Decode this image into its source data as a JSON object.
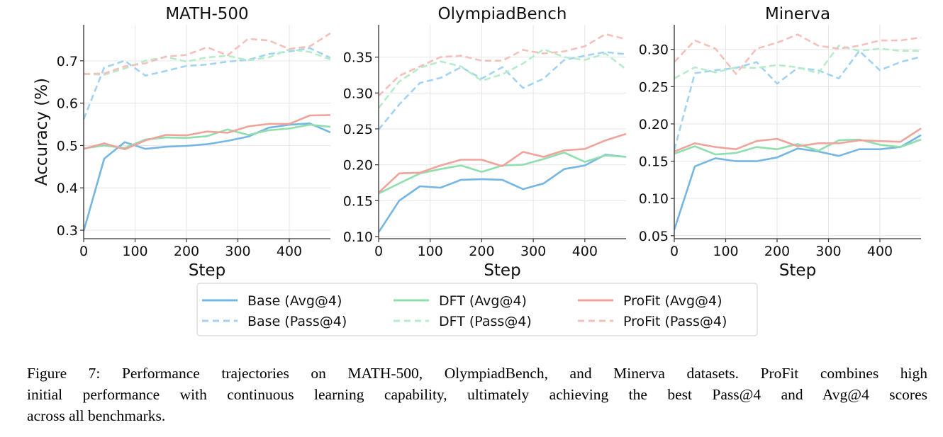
{
  "figure": {
    "caption_lines": [
      "Figure 7: Performance trajectories on MATH-500, OlympiadBench, and Minerva datasets. ProFit combines high",
      "initial performance with continuous learning capability, ultimately achieving the best Pass@4 and Avg@4 scores",
      "across all benchmarks."
    ]
  },
  "legend": {
    "placement": "bottom-center",
    "entries": [
      {
        "label": "Base (Avg@4)",
        "color": "#74b6e4",
        "style": "solid"
      },
      {
        "label": "DFT (Avg@4)",
        "color": "#8fdfae",
        "style": "solid"
      },
      {
        "label": "ProFit (Avg@4)",
        "color": "#f0a39b",
        "style": "solid"
      },
      {
        "label": "Base (Pass@4)",
        "color": "#a3d3f2",
        "style": "dashed"
      },
      {
        "label": "DFT (Pass@4)",
        "color": "#b6ecca",
        "style": "dashed"
      },
      {
        "label": "ProFit (Pass@4)",
        "color": "#f6c0ba",
        "style": "dashed"
      }
    ]
  },
  "chart_data": [
    {
      "type": "line",
      "title": "MATH-500",
      "xlabel": "Step",
      "ylabel": "Accuracy (%)",
      "xlim": [
        0,
        480
      ],
      "ylim": [
        0.28,
        0.785
      ],
      "xticks": [
        0,
        100,
        200,
        300,
        400
      ],
      "xtick_labels": [
        "0",
        "100",
        "200",
        "300",
        "400"
      ],
      "yticks": [
        0.3,
        0.4,
        0.5,
        0.6,
        0.7
      ],
      "ytick_labels": [
        "0.3",
        "0.4",
        "0.5",
        "0.6",
        "0.7"
      ],
      "grid": true,
      "x": [
        0,
        40,
        80,
        120,
        160,
        200,
        240,
        280,
        320,
        360,
        400,
        440,
        480
      ],
      "series": [
        {
          "name": "Base (Avg@4)",
          "values": [
            0.298,
            0.469,
            0.508,
            0.492,
            0.497,
            0.499,
            0.503,
            0.511,
            0.521,
            0.542,
            0.549,
            0.552,
            0.531
          ]
        },
        {
          "name": "DFT (Avg@4)",
          "values": [
            0.493,
            0.5,
            0.494,
            0.514,
            0.519,
            0.518,
            0.522,
            0.538,
            0.525,
            0.536,
            0.54,
            0.549,
            0.544
          ]
        },
        {
          "name": "ProFit (Avg@4)",
          "values": [
            0.492,
            0.505,
            0.491,
            0.512,
            0.525,
            0.524,
            0.533,
            0.53,
            0.545,
            0.551,
            0.551,
            0.571,
            0.572
          ]
        },
        {
          "name": "Base (Pass@4)",
          "values": [
            0.562,
            0.684,
            0.7,
            0.665,
            0.676,
            0.688,
            0.691,
            0.698,
            0.702,
            0.716,
            0.722,
            0.73,
            0.707
          ]
        },
        {
          "name": "DFT (Pass@4)",
          "values": [
            0.669,
            0.667,
            0.682,
            0.7,
            0.709,
            0.698,
            0.708,
            0.712,
            0.701,
            0.708,
            0.727,
            0.721,
            0.703
          ]
        },
        {
          "name": "ProFit (Pass@4)",
          "values": [
            0.669,
            0.67,
            0.687,
            0.694,
            0.71,
            0.714,
            0.732,
            0.713,
            0.752,
            0.748,
            0.728,
            0.734,
            0.765
          ]
        }
      ]
    },
    {
      "type": "line",
      "title": "OlympiadBench",
      "xlabel": "Step",
      "ylabel": "",
      "xlim": [
        0,
        480
      ],
      "ylim": [
        0.097,
        0.395
      ],
      "xticks": [
        0,
        100,
        200,
        300,
        400
      ],
      "xtick_labels": [
        "0",
        "100",
        "200",
        "300",
        "400"
      ],
      "yticks": [
        0.1,
        0.15,
        0.2,
        0.25,
        0.3,
        0.35
      ],
      "ytick_labels": [
        "0.10",
        "0.15",
        "0.20",
        "0.25",
        "0.30",
        "0.35"
      ],
      "grid": true,
      "x": [
        0,
        40,
        80,
        120,
        160,
        200,
        240,
        280,
        320,
        360,
        400,
        440,
        480
      ],
      "series": [
        {
          "name": "Base (Avg@4)",
          "values": [
            0.106,
            0.15,
            0.17,
            0.168,
            0.179,
            0.18,
            0.179,
            0.166,
            0.174,
            0.194,
            0.199,
            0.214,
            0.211
          ]
        },
        {
          "name": "DFT (Avg@4)",
          "values": [
            0.16,
            0.174,
            0.188,
            0.194,
            0.199,
            0.19,
            0.199,
            0.2,
            0.208,
            0.217,
            0.204,
            0.213,
            0.211
          ]
        },
        {
          "name": "ProFit (Avg@4)",
          "values": [
            0.161,
            0.188,
            0.189,
            0.199,
            0.207,
            0.207,
            0.198,
            0.218,
            0.211,
            0.22,
            0.222,
            0.234,
            0.243
          ]
        },
        {
          "name": "Base (Pass@4)",
          "values": [
            0.249,
            0.284,
            0.314,
            0.321,
            0.336,
            0.32,
            0.336,
            0.307,
            0.32,
            0.346,
            0.352,
            0.357,
            0.354
          ]
        },
        {
          "name": "DFT (Pass@4)",
          "values": [
            0.279,
            0.316,
            0.335,
            0.344,
            0.337,
            0.317,
            0.326,
            0.341,
            0.361,
            0.35,
            0.346,
            0.355,
            0.333
          ]
        },
        {
          "name": "ProFit (Pass@4)",
          "values": [
            0.296,
            0.324,
            0.337,
            0.35,
            0.352,
            0.345,
            0.345,
            0.36,
            0.355,
            0.358,
            0.365,
            0.382,
            0.375
          ]
        }
      ]
    },
    {
      "type": "line",
      "title": "Minerva",
      "xlabel": "Step",
      "ylabel": "",
      "xlim": [
        0,
        480
      ],
      "ylim": [
        0.046,
        0.333
      ],
      "xticks": [
        0,
        100,
        200,
        300,
        400
      ],
      "xtick_labels": [
        "0",
        "100",
        "200",
        "300",
        "400"
      ],
      "yticks": [
        0.05,
        0.1,
        0.15,
        0.2,
        0.25,
        0.3
      ],
      "ytick_labels": [
        "0.05",
        "0.10",
        "0.15",
        "0.20",
        "0.25",
        "0.30"
      ],
      "grid": true,
      "x": [
        0,
        40,
        80,
        120,
        160,
        200,
        240,
        280,
        320,
        360,
        400,
        440,
        480
      ],
      "series": [
        {
          "name": "Base (Avg@4)",
          "values": [
            0.058,
            0.143,
            0.154,
            0.15,
            0.15,
            0.155,
            0.167,
            0.163,
            0.157,
            0.166,
            0.166,
            0.169,
            0.185
          ]
        },
        {
          "name": "DFT (Avg@4)",
          "values": [
            0.16,
            0.17,
            0.159,
            0.161,
            0.169,
            0.166,
            0.173,
            0.164,
            0.178,
            0.179,
            0.172,
            0.169,
            0.179
          ]
        },
        {
          "name": "ProFit (Avg@4)",
          "values": [
            0.163,
            0.174,
            0.169,
            0.166,
            0.177,
            0.18,
            0.17,
            0.174,
            0.174,
            0.178,
            0.177,
            0.176,
            0.194
          ]
        },
        {
          "name": "Base (Pass@4)",
          "values": [
            0.165,
            0.268,
            0.272,
            0.275,
            0.283,
            0.254,
            0.275,
            0.272,
            0.261,
            0.298,
            0.272,
            0.283,
            0.29
          ]
        },
        {
          "name": "DFT (Pass@4)",
          "values": [
            0.261,
            0.276,
            0.269,
            0.276,
            0.275,
            0.279,
            0.276,
            0.268,
            0.305,
            0.298,
            0.301,
            0.298,
            0.298
          ]
        },
        {
          "name": "ProFit (Pass@4)",
          "values": [
            0.283,
            0.312,
            0.301,
            0.267,
            0.301,
            0.309,
            0.32,
            0.305,
            0.301,
            0.305,
            0.312,
            0.312,
            0.316
          ]
        }
      ]
    }
  ]
}
